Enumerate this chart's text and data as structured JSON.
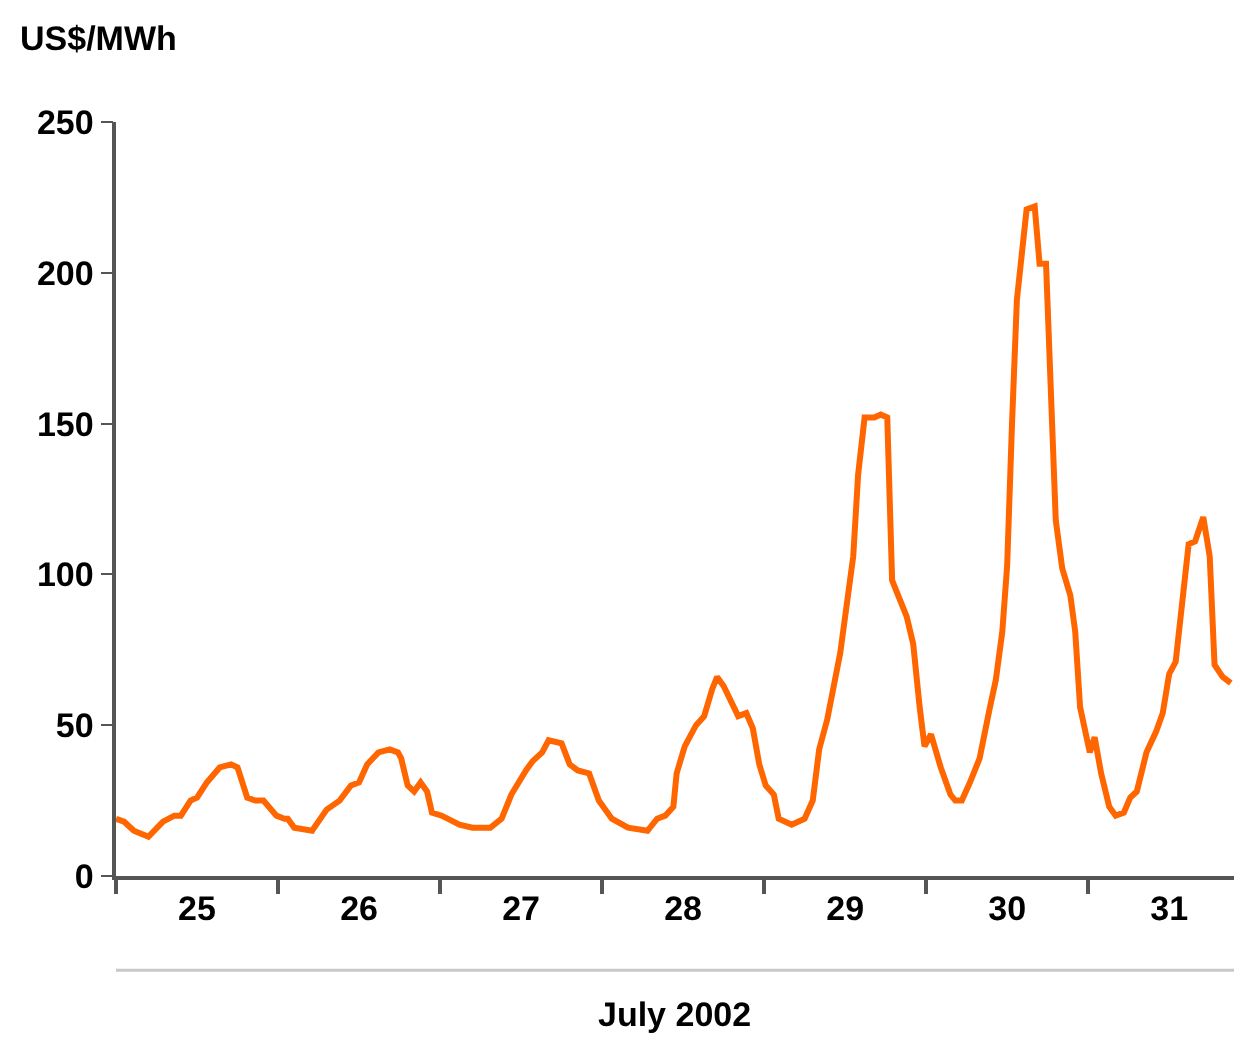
{
  "chart_data": {
    "type": "line",
    "ylabel": "US$/MWh",
    "xlabel": "July 2002",
    "xlim": [
      25,
      31.9
    ],
    "ylim": [
      0,
      250
    ],
    "yticks": [
      0,
      50,
      100,
      150,
      200,
      250
    ],
    "xticks": [
      {
        "value": 25,
        "label": null
      },
      {
        "value": 25.5,
        "label": "25"
      },
      {
        "value": 26,
        "label": null
      },
      {
        "value": 26.5,
        "label": "26"
      },
      {
        "value": 27,
        "label": null
      },
      {
        "value": 27.5,
        "label": "27"
      },
      {
        "value": 28,
        "label": null
      },
      {
        "value": 28.5,
        "label": "28"
      },
      {
        "value": 29,
        "label": null
      },
      {
        "value": 29.5,
        "label": "29"
      },
      {
        "value": 30,
        "label": null
      },
      {
        "value": 30.5,
        "label": "30"
      },
      {
        "value": 31,
        "label": null
      },
      {
        "value": 31.5,
        "label": "31"
      }
    ],
    "marker": "none",
    "line_style": "solid",
    "series": [
      {
        "color": "#ff6600",
        "x": [
          25.0,
          25.05,
          25.11,
          25.2,
          25.29,
          25.36,
          25.4,
          25.46,
          25.5,
          25.56,
          25.64,
          25.71,
          25.75,
          25.81,
          25.86,
          25.91,
          25.99,
          26.04,
          26.06,
          26.1,
          26.21,
          26.3,
          26.38,
          26.45,
          26.5,
          26.55,
          26.62,
          26.69,
          26.74,
          26.76,
          26.8,
          26.84,
          26.88,
          26.92,
          26.95,
          27.01,
          27.12,
          27.2,
          27.31,
          27.38,
          27.44,
          27.53,
          27.57,
          27.63,
          27.67,
          27.75,
          27.8,
          27.85,
          27.92,
          27.98,
          28.06,
          28.16,
          28.28,
          28.34,
          28.39,
          28.44,
          28.46,
          28.51,
          28.58,
          28.63,
          28.68,
          28.71,
          28.75,
          28.84,
          28.89,
          28.93,
          28.97,
          29.01,
          29.06,
          29.09,
          29.17,
          29.25,
          29.3,
          29.34,
          29.39,
          29.47,
          29.55,
          29.58,
          29.62,
          29.68,
          29.72,
          29.76,
          29.79,
          29.88,
          29.92,
          29.96,
          29.99,
          30.03,
          30.09,
          30.15,
          30.18,
          30.22,
          30.27,
          30.33,
          30.39,
          30.43,
          30.47,
          30.5,
          30.53,
          30.56,
          30.62,
          30.67,
          30.7,
          30.74,
          30.8,
          30.84,
          30.89,
          30.92,
          30.95,
          31.01,
          31.04,
          31.08,
          31.13,
          31.17,
          31.22,
          31.26,
          31.3,
          31.36,
          31.42,
          31.46,
          31.5,
          31.54,
          31.62,
          31.66,
          31.71,
          31.75,
          31.78,
          31.83,
          31.88
        ],
        "values": [
          19,
          18,
          15,
          13,
          18,
          20,
          20,
          25,
          26,
          31,
          36,
          37,
          36,
          26,
          25,
          25,
          20,
          19,
          19,
          16,
          15,
          22,
          25,
          30,
          31,
          37,
          41,
          42,
          41,
          39,
          30,
          28,
          31,
          28,
          21,
          20,
          17,
          16,
          16,
          19,
          27,
          35,
          38,
          41,
          45,
          44,
          37,
          35,
          34,
          25,
          19,
          16,
          15,
          19,
          20,
          23,
          34,
          43,
          50,
          53,
          62,
          66,
          63,
          53,
          54,
          49,
          37,
          30,
          27,
          19,
          17,
          19,
          25,
          42,
          52,
          74,
          106,
          133,
          152,
          152,
          153,
          152,
          98,
          86,
          77,
          56,
          43,
          47,
          36,
          27,
          25,
          25,
          31,
          39,
          55,
          65,
          81,
          103,
          150,
          191,
          221,
          222,
          203,
          203,
          118,
          102,
          93,
          81,
          56,
          41,
          46,
          34,
          23,
          20,
          21,
          26,
          28,
          41,
          48,
          54,
          67,
          71,
          110,
          111,
          119,
          106,
          70,
          66,
          64
        ]
      }
    ]
  }
}
